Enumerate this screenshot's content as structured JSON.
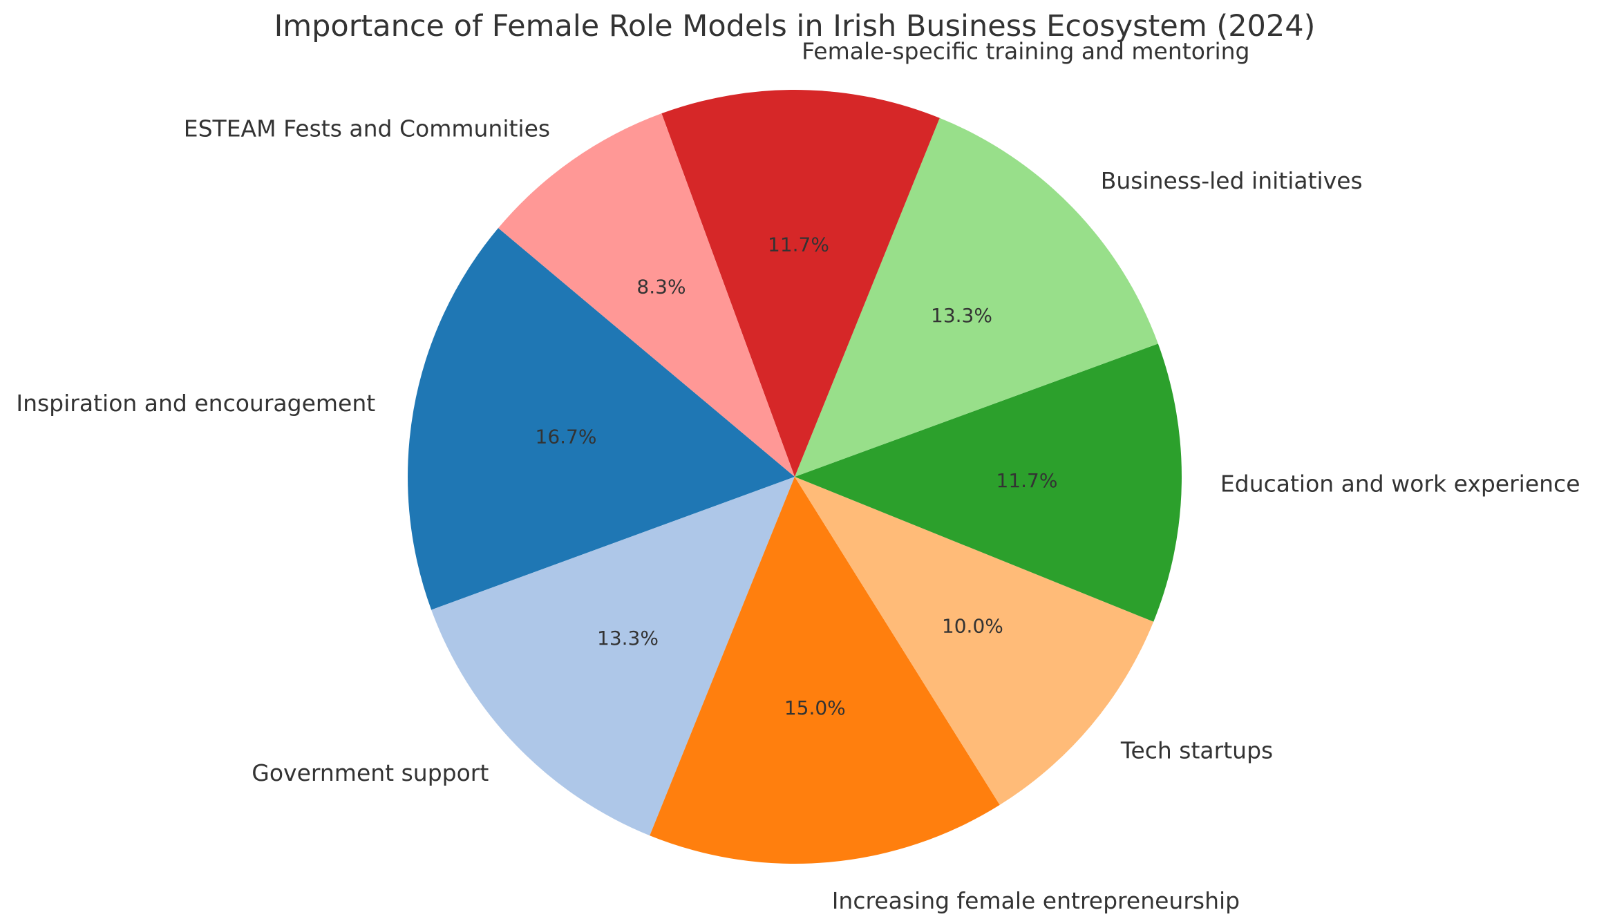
{
  "chart_data": {
    "type": "pie",
    "title": "Importance of Female Role Models in Irish Business Ecosystem (2024)",
    "start_angle_deg": 140,
    "direction": "counterclockwise",
    "slices": [
      {
        "label": "Inspiration and encouragement",
        "value": 16.7,
        "pct_label": "16.7%",
        "color": "#1f77b4"
      },
      {
        "label": "Government support",
        "value": 13.3,
        "pct_label": "13.3%",
        "color": "#aec7e8"
      },
      {
        "label": "Increasing female entrepreneurship",
        "value": 15.0,
        "pct_label": "15.0%",
        "color": "#ff7f0e"
      },
      {
        "label": "Tech startups",
        "value": 10.0,
        "pct_label": "10.0%",
        "color": "#ffbb78"
      },
      {
        "label": "Education and work experience",
        "value": 11.7,
        "pct_label": "11.7%",
        "color": "#2ca02c"
      },
      {
        "label": "Business-led initiatives",
        "value": 13.3,
        "pct_label": "13.3%",
        "color": "#98df8a"
      },
      {
        "label": "Female-specific training and mentoring",
        "value": 11.7,
        "pct_label": "11.7%",
        "color": "#d62728"
      },
      {
        "label": "ESTEAM Fests and Communities",
        "value": 8.3,
        "pct_label": "8.3%",
        "color": "#ff9896"
      }
    ]
  }
}
